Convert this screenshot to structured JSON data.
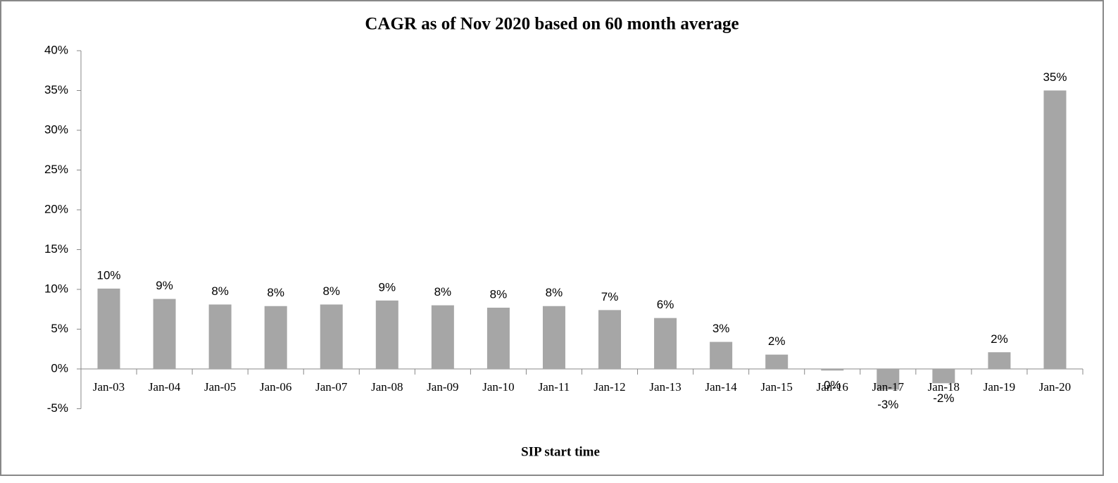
{
  "chart_data": {
    "type": "bar",
    "title": "CAGR as of Nov 2020 based on 60 month average",
    "x_label": "SIP start time",
    "categories": [
      "Jan-03",
      "Jan-04",
      "Jan-05",
      "Jan-06",
      "Jan-07",
      "Jan-08",
      "Jan-09",
      "Jan-10",
      "Jan-11",
      "Jan-12",
      "Jan-13",
      "Jan-14",
      "Jan-15",
      "Jan-16",
      "Jan-17",
      "Jan-18",
      "Jan-19",
      "Jan-20"
    ],
    "values": [
      10.1,
      8.8,
      8.1,
      7.9,
      8.1,
      8.6,
      8.0,
      7.7,
      7.9,
      7.4,
      6.4,
      3.4,
      1.8,
      -0.2,
      -2.6,
      -1.8,
      2.1,
      35.0
    ],
    "value_labels": [
      "10%",
      "9%",
      "8%",
      "8%",
      "8%",
      "9%",
      "8%",
      "8%",
      "8%",
      "7%",
      "6%",
      "3%",
      "2%",
      "0%",
      "-3%",
      "-2%",
      "2%",
      "35%"
    ],
    "color": "#a6a6a6",
    "ylim": [
      -5,
      40
    ],
    "yticks": [
      {
        "value": -5,
        "label": "-5%"
      },
      {
        "value": 0,
        "label": "0%"
      },
      {
        "value": 5,
        "label": "5%"
      },
      {
        "value": 10,
        "label": "10%"
      },
      {
        "value": 15,
        "label": "15%"
      },
      {
        "value": 20,
        "label": "20%"
      },
      {
        "value": 25,
        "label": "25%"
      },
      {
        "value": 30,
        "label": "30%"
      },
      {
        "value": 35,
        "label": "35%"
      },
      {
        "value": 40,
        "label": "40%"
      }
    ],
    "grid": false
  }
}
